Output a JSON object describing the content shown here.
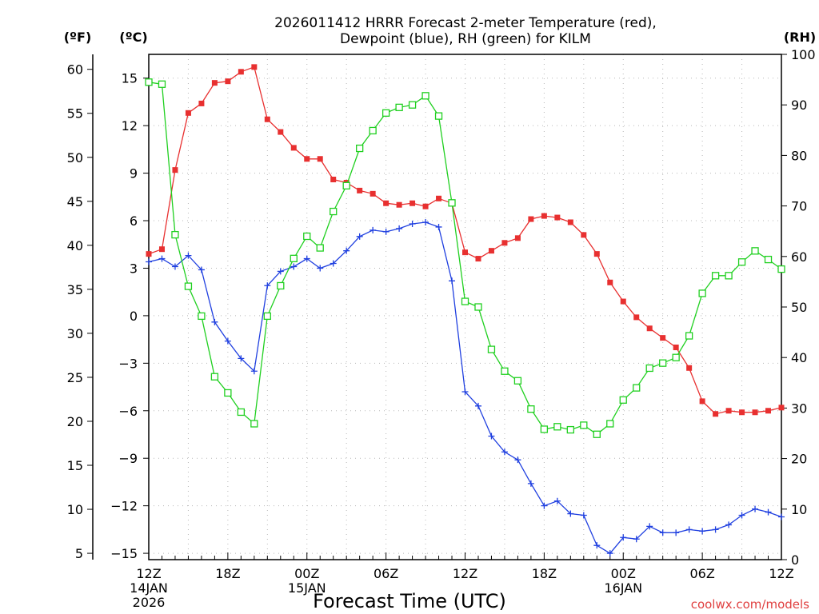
{
  "chart_data": {
    "type": "line",
    "title_line1": "2026011412 HRRR Forecast 2-meter Temperature (red),",
    "title_line2": "Dewpoint (blue), RH (green) for KILM",
    "xlabel": "Forecast Time (UTC)",
    "credit": "coolwx.com/models",
    "left_unit_f": "(ºF)",
    "left_unit_c": "(ºC)",
    "right_unit": "(RH)",
    "x_ticks": [
      {
        "h": 0,
        "label": "12Z",
        "date": "14JAN",
        "year": "2026"
      },
      {
        "h": 6,
        "label": "18Z"
      },
      {
        "h": 12,
        "label": "00Z",
        "date": "15JAN"
      },
      {
        "h": 18,
        "label": "06Z"
      },
      {
        "h": 24,
        "label": "12Z"
      },
      {
        "h": 30,
        "label": "18Z"
      },
      {
        "h": 36,
        "label": "00Z",
        "date": "16JAN"
      },
      {
        "h": 42,
        "label": "06Z"
      },
      {
        "h": 48,
        "label": "12Z"
      }
    ],
    "y_celsius_ticks": [
      15,
      12,
      9,
      6,
      3,
      0,
      -3,
      -6,
      -9,
      -12,
      -15
    ],
    "y_celsius_tick_labels": [
      "15",
      "12",
      "9",
      "6",
      "3",
      "0",
      "−3",
      "−6",
      "−9",
      "−12",
      "−15"
    ],
    "y_fahrenheit_ticks": [
      60,
      55,
      50,
      45,
      40,
      35,
      30,
      25,
      20,
      15,
      10,
      5
    ],
    "y_rh_ticks": [
      100,
      90,
      80,
      70,
      60,
      50,
      40,
      30,
      20,
      10,
      0
    ],
    "ylim_celsius": [
      -15.4,
      16.5
    ],
    "ylim_rh": [
      0,
      100
    ],
    "xlim_hours": [
      0,
      48
    ],
    "grid": true,
    "series": [
      {
        "name": "Temperature",
        "color": "#e83030",
        "marker": "filled-square",
        "axis": "celsius",
        "values": [
          3.9,
          4.2,
          9.2,
          12.8,
          13.4,
          14.7,
          14.8,
          15.4,
          15.7,
          12.4,
          11.6,
          10.6,
          9.9,
          9.9,
          8.6,
          8.4,
          7.9,
          7.7,
          7.1,
          7.0,
          7.1,
          6.9,
          7.4,
          7.1,
          4.0,
          3.6,
          4.1,
          4.6,
          4.9,
          6.1,
          6.3,
          6.2,
          5.9,
          5.1,
          3.9,
          2.1,
          0.9,
          -0.1,
          -0.8,
          -1.4,
          -2.0,
          -3.3,
          -5.4,
          -6.2,
          -6.0,
          -6.1,
          -6.1,
          -6.0,
          -5.8
        ]
      },
      {
        "name": "Dewpoint",
        "color": "#2040e0",
        "marker": "plus",
        "axis": "celsius",
        "values": [
          3.4,
          3.6,
          3.1,
          3.8,
          2.9,
          -0.4,
          -1.6,
          -2.7,
          -3.5,
          1.9,
          2.8,
          3.1,
          3.6,
          3.0,
          3.3,
          4.1,
          5.0,
          5.4,
          5.3,
          5.5,
          5.8,
          5.9,
          5.6,
          2.2,
          -4.8,
          -5.7,
          -7.6,
          -8.6,
          -9.1,
          -10.6,
          -12.0,
          -11.7,
          -12.5,
          -12.6,
          -14.5,
          -15.0,
          -14.0,
          -14.1,
          -13.3,
          -13.7,
          -13.7,
          -13.5,
          -13.6,
          -13.5,
          -13.2,
          -12.6,
          -12.2,
          -12.4,
          -12.7
        ]
      },
      {
        "name": "RH",
        "color": "#20d020",
        "marker": "open-square",
        "axis": "rh",
        "values": [
          94.5,
          94.1,
          64.3,
          54.1,
          48.2,
          36.2,
          33.0,
          29.2,
          26.9,
          48.2,
          54.2,
          59.6,
          64.0,
          61.7,
          68.9,
          74.0,
          81.4,
          84.9,
          88.4,
          89.5,
          90.0,
          91.8,
          87.8,
          70.6,
          51.1,
          50.0,
          41.6,
          37.3,
          35.4,
          29.8,
          25.8,
          26.3,
          25.7,
          26.6,
          24.8,
          26.9,
          31.6,
          34.0,
          37.9,
          38.9,
          40.0,
          44.3,
          52.7,
          56.2,
          56.2,
          58.9,
          61.1,
          59.4,
          57.5
        ]
      }
    ]
  }
}
